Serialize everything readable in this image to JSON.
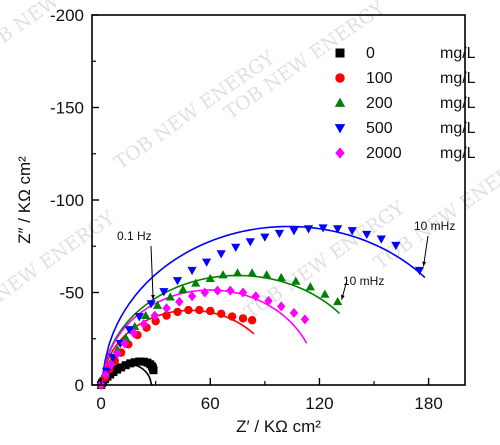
{
  "chart_data": {
    "type": "scatter",
    "xlabel": "Z′ / KΩ cm²",
    "ylabel": "Z″ / KΩ cm²",
    "xlim": [
      -5,
      200
    ],
    "ylim": [
      0,
      -200
    ],
    "x_ticks": [
      0,
      60,
      120,
      180
    ],
    "y_ticks": [
      0,
      -50,
      -100,
      -150,
      -200
    ],
    "legend_position": "top-right",
    "grid": false,
    "series": [
      {
        "name": "0 mg/L",
        "legend_value": "0",
        "legend_unit": "mg/L",
        "marker": "square",
        "color": "#000000",
        "x": [
          0,
          0.5,
          1.2,
          2.2,
          3.5,
          5,
          6.8,
          8.8,
          11,
          13.5,
          16,
          18.5,
          21,
          23.5,
          25.5,
          27,
          28,
          28.5,
          28.8
        ],
        "y": [
          0,
          -1,
          -2,
          -3.2,
          -4.5,
          -5.7,
          -7,
          -8.3,
          -9.5,
          -10.7,
          -11.7,
          -12.3,
          -12.7,
          -12.6,
          -12.1,
          -11.2,
          -10.1,
          -9,
          -8
        ],
        "fit": {
          "cx": 14,
          "r": 13.5,
          "yscale": 0.85,
          "x_end": 28.5
        }
      },
      {
        "name": "100 mg/L",
        "legend_value": "100",
        "legend_unit": "mg/L",
        "marker": "circle",
        "color": "#ff0000",
        "x": [
          0,
          2,
          4.5,
          7.5,
          11,
          15,
          20,
          25,
          30,
          36,
          42,
          48,
          54,
          60,
          66,
          72,
          78,
          83
        ],
        "y": [
          0,
          -4,
          -8.5,
          -13,
          -17.5,
          -22,
          -27,
          -31,
          -34.5,
          -37.5,
          -39.5,
          -40.5,
          -40.5,
          -40,
          -38.5,
          -37,
          -36,
          -35
        ],
        "fit": {
          "cx": 49,
          "r": 48,
          "yscale": 0.84,
          "x_end": 84
        }
      },
      {
        "name": "200 mg/L",
        "legend_value": "200",
        "legend_unit": "mg/L",
        "marker": "triangle-up",
        "color": "#008000",
        "x": [
          0,
          2.5,
          5.5,
          9,
          13.5,
          18.5,
          24.5,
          31,
          38,
          45,
          52,
          60,
          67,
          75,
          83,
          91,
          99,
          107,
          115,
          123,
          130
        ],
        "y": [
          0,
          -6,
          -12.5,
          -19,
          -25.5,
          -31.5,
          -37.5,
          -43,
          -47.5,
          -51.5,
          -55,
          -57.5,
          -59.5,
          -60.5,
          -60.5,
          -59.5,
          -58,
          -56,
          -53,
          -49,
          -45
        ],
        "fit": {
          "cx": 75,
          "r": 74,
          "yscale": 0.8,
          "x_end": 131
        }
      },
      {
        "name": "500 mg/L",
        "legend_value": "500",
        "legend_unit": "mg/L",
        "marker": "triangle-down",
        "color": "#0000ff",
        "x": [
          0,
          3,
          6.5,
          10.5,
          15.5,
          21,
          27.5,
          34.5,
          42,
          50,
          58,
          66,
          74,
          82,
          90,
          98,
          106,
          114,
          122,
          130,
          138,
          146,
          154,
          162,
          175
        ],
        "y": [
          0,
          -7.5,
          -15,
          -22.5,
          -30,
          -37,
          -44,
          -50.5,
          -56.5,
          -62,
          -66.5,
          -71,
          -74.5,
          -77.5,
          -80,
          -82,
          -83.5,
          -84.5,
          -85,
          -84.5,
          -83.5,
          -81.5,
          -79,
          -75.5,
          -62
        ],
        "fit": {
          "cx": 103,
          "r": 102,
          "yscale": 0.84,
          "x_end": 178
        }
      },
      {
        "name": "2000 mg/L",
        "legend_value": "2000",
        "legend_unit": "mg/L",
        "marker": "diamond",
        "color": "#ff00ff",
        "x": [
          0,
          2.5,
          5.5,
          9,
          13,
          18,
          23.5,
          29.5,
          36,
          43,
          50,
          57,
          64,
          71,
          78,
          85,
          92,
          99,
          106,
          112
        ],
        "y": [
          0,
          -5.5,
          -11,
          -17,
          -22.5,
          -28,
          -33,
          -37.5,
          -41.5,
          -45,
          -48,
          -50,
          -51,
          -51,
          -50,
          -48,
          -45.5,
          -42.5,
          -39,
          -35.5
        ],
        "fit": {
          "cx": 60,
          "r": 59,
          "yscale": 0.87,
          "x_end": 113
        }
      }
    ],
    "annotations": [
      {
        "text": "0.1 Hz",
        "series": "500 mg/L"
      },
      {
        "text": "10 mHz",
        "series": "500 mg/L"
      },
      {
        "text": "10 mHz",
        "series": "200 mg/L"
      }
    ]
  },
  "watermark": "TOB NEW ENERGY"
}
